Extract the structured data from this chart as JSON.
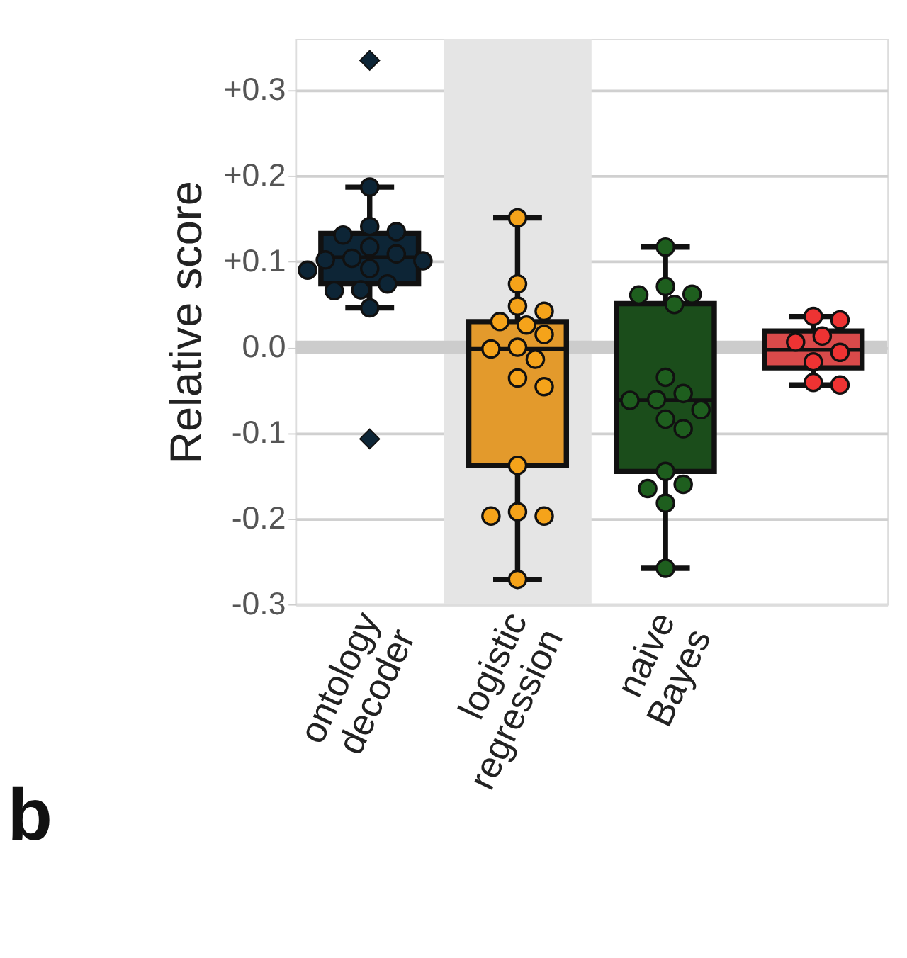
{
  "chart_data": {
    "type": "box",
    "categories": [
      "ontology decoder",
      "logistic regression",
      "naive Bayes",
      null
    ],
    "colors": [
      "#0d2536",
      "#e39a2c",
      "#1b4d1b",
      "#d94a4a"
    ],
    "boxes": [
      {
        "low": 0.046,
        "q1": 0.074,
        "median": 0.105,
        "q3": 0.133,
        "high": 0.187,
        "outliers": [
          0.335,
          -0.107
        ]
      },
      {
        "low": -0.271,
        "q1": -0.138,
        "median": -0.002,
        "q3": 0.03,
        "high": 0.151
      },
      {
        "low": -0.258,
        "q1": -0.145,
        "median": -0.062,
        "q3": 0.051,
        "high": 0.117
      },
      {
        "low": -0.044,
        "q1": -0.024,
        "median": -0.003,
        "q3": 0.019,
        "high": 0.036
      }
    ],
    "series": [
      {
        "type": "scatter",
        "color": "#0d2536",
        "x": [
          "ontology decoder",
          "ontology decoder",
          "ontology decoder",
          "ontology decoder",
          "ontology decoder",
          "ontology decoder",
          "ontology decoder",
          "ontology decoder",
          "ontology decoder",
          "ontology decoder",
          "ontology decoder",
          "ontology decoder",
          "ontology decoder",
          "ontology decoder",
          "ontology decoder"
        ],
        "values": [
          0.187,
          0.141,
          0.131,
          0.135,
          0.117,
          0.104,
          0.109,
          0.101,
          0.102,
          0.092,
          0.09,
          0.067,
          0.066,
          0.074,
          0.046
        ]
      },
      {
        "type": "scatter",
        "color": "#f5a31a",
        "x": [
          "logistic regression",
          "logistic regression",
          "logistic regression",
          "logistic regression",
          "logistic regression",
          "logistic regression",
          "logistic regression",
          "logistic regression",
          "logistic regression",
          "logistic regression",
          "logistic regression",
          "logistic regression",
          "logistic regression",
          "logistic regression",
          "logistic regression",
          "logistic regression",
          "logistic regression"
        ],
        "values": [
          0.151,
          0.074,
          0.048,
          0.042,
          0.026,
          0.03,
          0.015,
          -0.002,
          0.0,
          -0.014,
          -0.036,
          -0.046,
          -0.138,
          -0.197,
          -0.197,
          -0.192,
          -0.271
        ]
      },
      {
        "type": "scatter",
        "color": "#1e5e1e",
        "x": [
          "naive Bayes",
          "naive Bayes",
          "naive Bayes",
          "naive Bayes",
          "naive Bayes",
          "naive Bayes",
          "naive Bayes",
          "naive Bayes",
          "naive Bayes",
          "naive Bayes",
          "naive Bayes",
          "naive Bayes",
          "naive Bayes",
          "naive Bayes",
          "naive Bayes",
          "naive Bayes",
          "naive Bayes"
        ],
        "values": [
          0.117,
          0.061,
          0.05,
          0.062,
          0.071,
          -0.035,
          -0.062,
          -0.061,
          -0.054,
          -0.073,
          -0.084,
          -0.095,
          -0.145,
          -0.165,
          -0.16,
          -0.182,
          -0.258
        ]
      },
      {
        "type": "scatter",
        "color": "#ee3333",
        "x": [
          null,
          null,
          null,
          null,
          null,
          null,
          null,
          null
        ],
        "values": [
          0.036,
          0.032,
          0.013,
          0.006,
          -0.006,
          -0.017,
          -0.041,
          -0.044
        ]
      }
    ],
    "ylabel": "Relative score",
    "ylim": [
      -0.3,
      0.36
    ],
    "yticks": [
      {
        "value": 0.3,
        "label": "+0.3"
      },
      {
        "value": 0.2,
        "label": "+0.2"
      },
      {
        "value": 0.1,
        "label": "+0.1"
      },
      {
        "value": 0.0,
        "label": "0.0"
      },
      {
        "value": -0.1,
        "label": "-0.1"
      },
      {
        "value": -0.2,
        "label": "-0.2"
      },
      {
        "value": -0.3,
        "label": "-0.3"
      }
    ],
    "grid": "y",
    "ref_lines": [
      {
        "axis": "y",
        "value": 0,
        "color": "#cccccc"
      }
    ],
    "bands": [
      {
        "axis": "x",
        "from": "logistic regression",
        "to": "logistic regression",
        "color": "#e5e5e5"
      }
    ],
    "annotations": [
      "b"
    ]
  }
}
